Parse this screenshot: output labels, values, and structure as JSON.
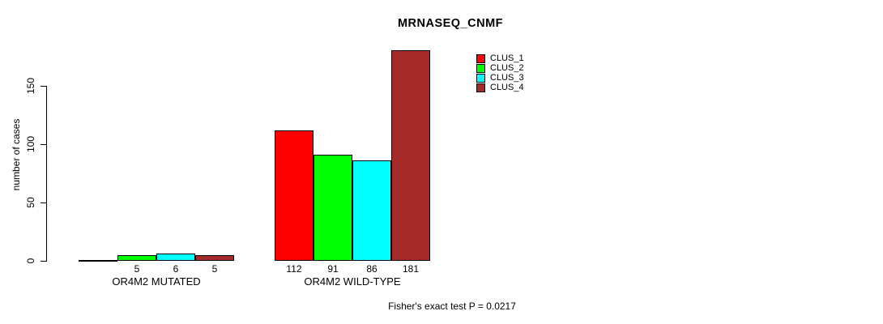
{
  "chart_data": {
    "type": "bar",
    "title": "MRNASEQ_CNMF",
    "ylabel": "number of cases",
    "xlabel": "",
    "categories": [
      "OR4M2 MUTATED",
      "OR4M2 WILD-TYPE"
    ],
    "series": [
      {
        "name": "CLUS_1",
        "color": "#FF0000",
        "values": [
          0,
          112
        ]
      },
      {
        "name": "CLUS_2",
        "color": "#00FF00",
        "values": [
          5,
          91
        ]
      },
      {
        "name": "CLUS_3",
        "color": "#00FFFF",
        "values": [
          6,
          86
        ]
      },
      {
        "name": "CLUS_4",
        "color": "#A52A2A",
        "values": [
          5,
          181
        ]
      }
    ],
    "yticks": [
      0,
      50,
      100,
      150
    ],
    "axis_range": [
      0,
      150
    ],
    "grid": false,
    "legend_position": "top-right",
    "bar_border_color": "#000000",
    "annotation": "Fisher's exact test P = 0.0217"
  }
}
